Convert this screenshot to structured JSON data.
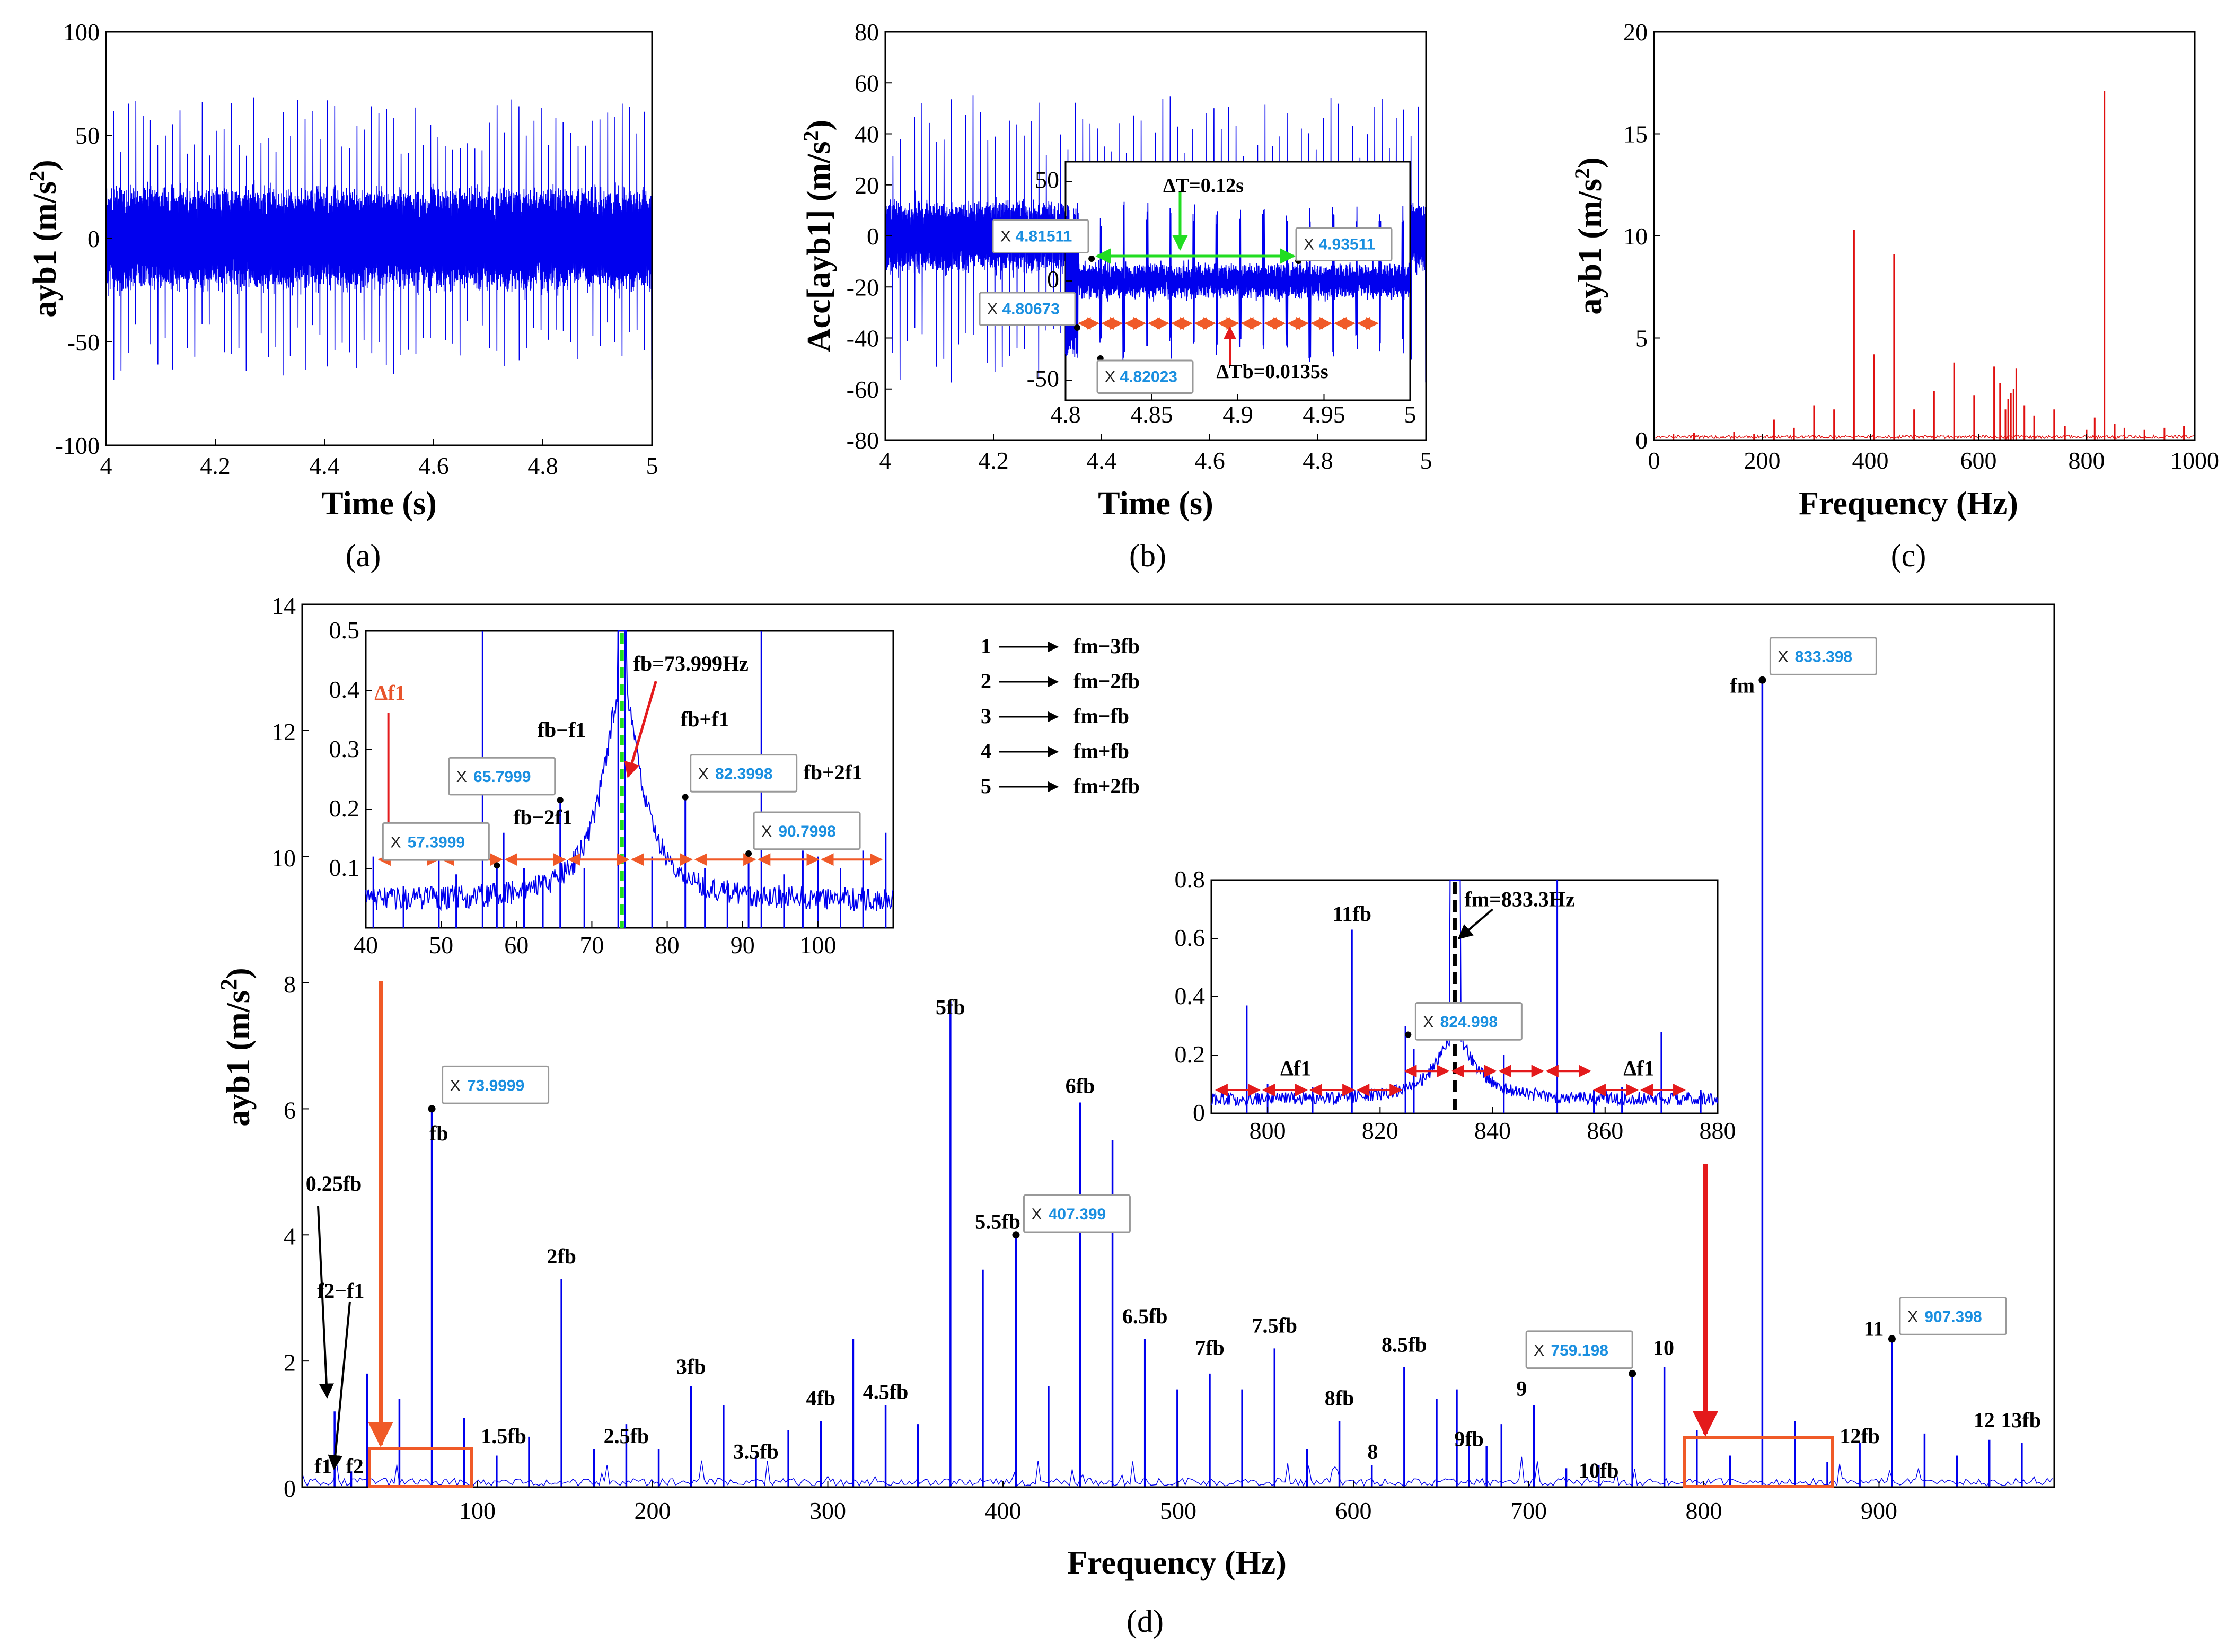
{
  "colors": {
    "signal": "#0000ee",
    "spectrum_c": "#e01010",
    "orange": "#f05a28",
    "red": "#e41a1c",
    "green": "#22dd22",
    "datatip_value": "#1a8fe0"
  },
  "panels": {
    "a": {
      "label": "(a)"
    },
    "b": {
      "label": "(b)"
    },
    "c": {
      "label": "(c)"
    },
    "d": {
      "label": "(d)"
    }
  },
  "chart_data": [
    {
      "id": "a",
      "type": "line",
      "title": "",
      "xlabel": "Time (s)",
      "ylabel": "ayb1 (m/s²)",
      "xlim": [
        4,
        5
      ],
      "ylim": [
        -100,
        100
      ],
      "xticks": [
        "4",
        "4.2",
        "4.4",
        "4.6",
        "4.8",
        "5"
      ],
      "yticks": [
        "-100",
        "-50",
        "0",
        "50",
        "100"
      ],
      "series": [
        {
          "name": "ayb1",
          "description": "dense vibration signal, base amplitude about ±25 m/s², periodic impulses to about +65 / -75 m/s²"
        }
      ]
    },
    {
      "id": "b",
      "type": "line",
      "xlabel": "Time (s)",
      "ylabel": "Acc[ayb1] (m/s²)",
      "xlim": [
        4,
        5
      ],
      "ylim": [
        -80,
        80
      ],
      "xticks": [
        "4",
        "4.2",
        "4.4",
        "4.6",
        "4.8",
        "5"
      ],
      "yticks": [
        "-80",
        "-60",
        "-40",
        "-20",
        "0",
        "20",
        "40",
        "60",
        "80"
      ],
      "inset": {
        "xlim": [
          4.8,
          5
        ],
        "ylim": [
          -60,
          60
        ],
        "xticks": [
          "4.8",
          "4.85",
          "4.9",
          "4.95",
          "5"
        ],
        "yticks": [
          "-50",
          "0",
          "50"
        ],
        "datatips": [
          {
            "x": "4.81511",
            "xval": 4.81511
          },
          {
            "x": "4.93511",
            "xval": 4.93511
          },
          {
            "x": "4.80673",
            "xval": 4.80673
          },
          {
            "x": "4.82023",
            "xval": 4.82023
          }
        ],
        "annotations": {
          "delta_T": "ΔT=0.12s",
          "delta_Tb": "ΔTb=0.0135s"
        }
      }
    },
    {
      "id": "c",
      "type": "bar",
      "xlabel": "Frequency (Hz)",
      "ylabel": "ayb1 (m/s²)",
      "xlim": [
        0,
        1000
      ],
      "ylim": [
        0,
        20
      ],
      "xticks": [
        "0",
        "200",
        "400",
        "600",
        "800",
        "1000"
      ],
      "yticks": [
        "0",
        "5",
        "10",
        "15",
        "20"
      ],
      "x": [
        36,
        74,
        148,
        185,
        222,
        259,
        296,
        333,
        370,
        407,
        444,
        481,
        518,
        555,
        592,
        629,
        640,
        650,
        655,
        660,
        665,
        670,
        685,
        703,
        740,
        760,
        800,
        815,
        833,
        852,
        870,
        907,
        944,
        980
      ],
      "values": [
        0.3,
        0.35,
        0.4,
        0.3,
        1.0,
        0.6,
        1.7,
        1.5,
        10.3,
        4.2,
        9.1,
        1.5,
        2.4,
        3.8,
        2.2,
        3.6,
        2.8,
        1.5,
        2.0,
        2.3,
        2.5,
        3.5,
        1.7,
        1.2,
        1.5,
        0.7,
        0.5,
        1.1,
        17.1,
        0.8,
        0.6,
        0.5,
        0.6,
        0.7
      ]
    },
    {
      "id": "d",
      "type": "bar",
      "xlabel": "Frequency (Hz)",
      "ylabel": "ayb1 (m/s²)",
      "xlim": [
        0,
        1000
      ],
      "ylim": [
        0,
        14
      ],
      "xticks": [
        "100",
        "200",
        "300",
        "400",
        "500",
        "600",
        "700",
        "800",
        "900"
      ],
      "yticks": [
        "0",
        "2",
        "4",
        "6",
        "8",
        "10",
        "12",
        "14"
      ],
      "x": [
        18.5,
        28,
        37,
        55.5,
        74,
        92.5,
        111,
        129.5,
        148,
        166.5,
        185,
        203.5,
        222,
        240.5,
        259,
        277.5,
        296,
        314.5,
        333,
        351.5,
        370,
        388.5,
        407.4,
        426,
        444,
        462.5,
        481,
        499.5,
        518,
        536.5,
        555,
        573.5,
        592,
        610.5,
        629,
        647.5,
        659,
        666,
        676,
        684.5,
        703,
        721.5,
        740,
        759.2,
        777.5,
        796,
        815,
        833.4,
        852,
        870.5,
        889,
        907.4,
        926,
        944.5,
        963,
        981.5
      ],
      "values": [
        1.2,
        0.25,
        1.8,
        1.4,
        6.0,
        1.1,
        0.5,
        0.8,
        3.3,
        0.6,
        1.0,
        0.6,
        1.6,
        1.3,
        0.5,
        0.9,
        1.05,
        2.35,
        1.3,
        1.0,
        7.7,
        3.45,
        4.0,
        1.6,
        6.1,
        5.5,
        2.35,
        1.55,
        1.8,
        1.55,
        2.2,
        0.6,
        1.05,
        0.35,
        1.9,
        1.4,
        1.55,
        0.65,
        0.65,
        1.0,
        1.3,
        0.3,
        0.35,
        1.8,
        1.9,
        0.9,
        0.5,
        12.8,
        1.05,
        0.4,
        0.7,
        2.35,
        0.85,
        0.5,
        0.75,
        0.7
      ],
      "datatips": [
        {
          "x": "73.9999",
          "xval": 73.9999,
          "y": 6.0
        },
        {
          "x": "407.399",
          "xval": 407.399,
          "y": 4.0
        },
        {
          "x": "759.198",
          "xval": 759.198,
          "y": 1.8
        },
        {
          "x": "833.398",
          "xval": 833.398,
          "y": 12.8
        },
        {
          "x": "907.398",
          "xval": 907.398,
          "y": 2.35
        }
      ],
      "peak_labels": [
        {
          "text": "f1",
          "x": 12,
          "y": 0.22
        },
        {
          "text": "f2",
          "x": 30,
          "y": 0.22
        },
        {
          "text": "0.25fb",
          "x": 18,
          "y": 4.7
        },
        {
          "text": "f2−f1",
          "x": 22,
          "y": 3.0
        },
        {
          "text": "fb",
          "x": 78,
          "y": 5.5
        },
        {
          "text": "1.5fb",
          "x": 115,
          "y": 0.7
        },
        {
          "text": "2fb",
          "x": 148,
          "y": 3.55
        },
        {
          "text": "2.5fb",
          "x": 185,
          "y": 0.7
        },
        {
          "text": "3fb",
          "x": 222,
          "y": 1.8
        },
        {
          "text": "3.5fb",
          "x": 259,
          "y": 0.45
        },
        {
          "text": "4fb",
          "x": 296,
          "y": 1.3
        },
        {
          "text": "4.5fb",
          "x": 333,
          "y": 1.4
        },
        {
          "text": "5fb",
          "x": 370,
          "y": 7.5
        },
        {
          "text": "5.5fb",
          "x": 397,
          "y": 4.1
        },
        {
          "text": "6fb",
          "x": 444,
          "y": 6.25
        },
        {
          "text": "6.5fb",
          "x": 481,
          "y": 2.6
        },
        {
          "text": "7fb",
          "x": 518,
          "y": 2.1
        },
        {
          "text": "7.5fb",
          "x": 555,
          "y": 2.45
        },
        {
          "text": "8fb",
          "x": 592,
          "y": 1.3
        },
        {
          "text": "8",
          "x": 611,
          "y": 0.45
        },
        {
          "text": "8.5fb",
          "x": 629,
          "y": 2.15
        },
        {
          "text": "9fb",
          "x": 666,
          "y": 0.65
        },
        {
          "text": "9",
          "x": 696,
          "y": 1.45
        },
        {
          "text": "10fb",
          "x": 740,
          "y": 0.15
        },
        {
          "text": "10",
          "x": 777,
          "y": 2.1
        },
        {
          "text": "fm",
          "x": 822,
          "y": 12.6
        },
        {
          "text": "11",
          "x": 897,
          "y": 2.4
        },
        {
          "text": "12fb",
          "x": 889,
          "y": 0.7
        },
        {
          "text": "12",
          "x": 960,
          "y": 0.95
        },
        {
          "text": "13fb",
          "x": 981,
          "y": 0.95
        }
      ],
      "legend": [
        {
          "num": "1",
          "label": "fm−3fb"
        },
        {
          "num": "2",
          "label": "fm−2fb"
        },
        {
          "num": "3",
          "label": "fm−fb"
        },
        {
          "num": "4",
          "label": "fm+fb"
        },
        {
          "num": "5",
          "label": "fm+2fb"
        }
      ],
      "inset_left": {
        "xlim": [
          40,
          110
        ],
        "ylim": [
          0,
          0.5
        ],
        "xticks": [
          "40",
          "50",
          "60",
          "70",
          "80",
          "90",
          "100"
        ],
        "yticks": [
          "0.1",
          "0.2",
          "0.3",
          "0.4",
          "0.5"
        ],
        "datatips": [
          {
            "x": "57.3999",
            "xval": 57.3999,
            "y": 0.105
          },
          {
            "x": "65.7999",
            "xval": 65.7999,
            "y": 0.215
          },
          {
            "x": "82.3998",
            "xval": 82.3998,
            "y": 0.22
          },
          {
            "x": "90.7998",
            "xval": 90.7998,
            "y": 0.125
          }
        ],
        "labels": {
          "delta_f1": "Δf1",
          "fb_minus_f1": "fb−f1",
          "fb_minus_2f1": "fb−2f1",
          "fb_plus_f1": "fb+f1",
          "fb_plus_2f1": "fb+2f1",
          "fb_value": "fb=73.999Hz"
        }
      },
      "inset_right": {
        "xlim": [
          790,
          880
        ],
        "ylim": [
          0,
          0.8
        ],
        "xticks": [
          "800",
          "820",
          "840",
          "860",
          "880"
        ],
        "yticks": [
          "0",
          "0.2",
          "0.4",
          "0.6",
          "0.8"
        ],
        "datatips": [
          {
            "x": "824.998",
            "xval": 824.998,
            "y": 0.27
          }
        ],
        "labels": {
          "eleven_fb": "11fb",
          "fm_value": "fm=833.3Hz",
          "delta_f1_a": "Δf1",
          "delta_f1_b": "Δf1"
        }
      }
    }
  ]
}
